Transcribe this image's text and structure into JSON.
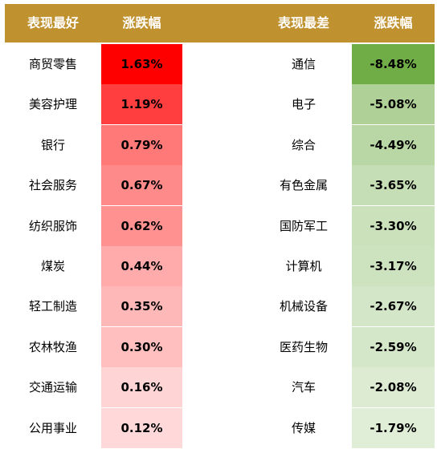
{
  "header": {
    "best_label": "表现最好",
    "best_change_label": "涨跌幅",
    "worst_label": "表现最差",
    "worst_change_label": "涨跌幅"
  },
  "chart_data": {
    "type": "table",
    "columns": [
      "表现最好",
      "涨跌幅",
      "表现最差",
      "涨跌幅"
    ],
    "best": [
      {
        "name": "商贸零售",
        "value": "1.63%",
        "change": 1.63
      },
      {
        "name": "美容护理",
        "value": "1.19%",
        "change": 1.19
      },
      {
        "name": "银行",
        "value": "0.79%",
        "change": 0.79
      },
      {
        "name": "社会服务",
        "value": "0.67%",
        "change": 0.67
      },
      {
        "name": "纺织服饰",
        "value": "0.62%",
        "change": 0.62
      },
      {
        "name": "煤炭",
        "value": "0.44%",
        "change": 0.44
      },
      {
        "name": "轻工制造",
        "value": "0.35%",
        "change": 0.35
      },
      {
        "name": "农林牧渔",
        "value": "0.30%",
        "change": 0.3
      },
      {
        "name": "交通运输",
        "value": "0.16%",
        "change": 0.16
      },
      {
        "name": "公用事业",
        "value": "0.12%",
        "change": 0.12
      }
    ],
    "worst": [
      {
        "name": "通信",
        "value": "-8.48%",
        "change": -8.48
      },
      {
        "name": "电子",
        "value": "-5.08%",
        "change": -5.08
      },
      {
        "name": "综合",
        "value": "-4.49%",
        "change": -4.49
      },
      {
        "name": "有色金属",
        "value": "-3.65%",
        "change": -3.65
      },
      {
        "name": "国防军工",
        "value": "-3.30%",
        "change": -3.3
      },
      {
        "name": "计算机",
        "value": "-3.17%",
        "change": -3.17
      },
      {
        "name": "机械设备",
        "value": "-2.67%",
        "change": -2.67
      },
      {
        "name": "医药生物",
        "value": "-2.59%",
        "change": -2.59
      },
      {
        "name": "汽车",
        "value": "-2.08%",
        "change": -2.08
      },
      {
        "name": "传媒",
        "value": "-1.79%",
        "change": -1.79
      }
    ],
    "colors": {
      "header_bg": "#c0912f",
      "best_heat": [
        "#ff0000",
        "#ffffff"
      ],
      "worst_heat": [
        "#70ad47",
        "#ffffff"
      ]
    }
  }
}
